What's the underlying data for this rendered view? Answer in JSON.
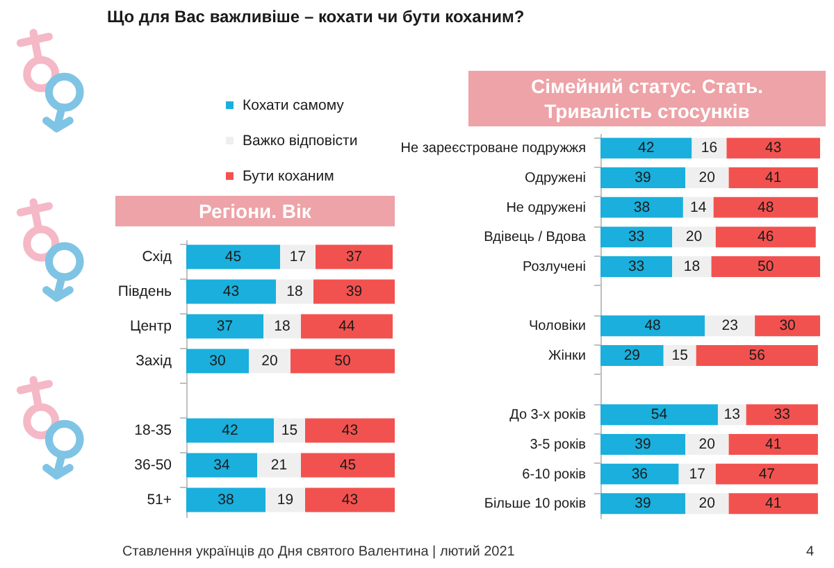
{
  "chart_data": [
    {
      "type": "bar",
      "title": "Що для Вас важливіше – кохати чи бути коханим?",
      "subtitle": "Регіони. Вік",
      "orientation": "horizontal",
      "stacked": true,
      "data_labels": true,
      "tick_labels": "y",
      "legend": "top",
      "categories": [
        "Схід",
        "Південь",
        "Центр",
        "Захід",
        null,
        "18-35",
        "36-50",
        "51+"
      ],
      "series": [
        {
          "name": "Кохати самому",
          "color": "#1aafdc",
          "values": [
            45,
            43,
            37,
            30,
            null,
            42,
            34,
            38
          ]
        },
        {
          "name": "Важко відповісти",
          "color": "#efefef",
          "values": [
            17,
            18,
            18,
            20,
            null,
            15,
            21,
            19
          ]
        },
        {
          "name": "Бути коханим",
          "color": "#f2524f",
          "values": [
            37,
            39,
            44,
            50,
            null,
            43,
            45,
            43
          ]
        }
      ],
      "annotations": [
        "Ставлення українців до Дня святого Валентина | лютий 2021"
      ]
    },
    {
      "type": "bar",
      "title": "Сімейний статус. Стать. Тривалість стосунків",
      "orientation": "horizontal",
      "stacked": true,
      "data_labels": true,
      "tick_labels": "y",
      "categories": [
        "Не зареєстроване подружжя",
        "Одружені",
        "Не одружені",
        "Вдівець / Вдова",
        "Розлучені",
        null,
        "Чоловіки",
        "Жінки",
        null,
        "До 3-х років",
        "3-5 років",
        "6-10 років",
        "Більше 10 років"
      ],
      "series": [
        {
          "color": "#1aafdc",
          "values": [
            42,
            39,
            38,
            33,
            33,
            null,
            48,
            29,
            null,
            54,
            39,
            36,
            39
          ]
        },
        {
          "color": "#efefef",
          "values": [
            16,
            20,
            14,
            20,
            18,
            null,
            23,
            15,
            null,
            13,
            20,
            17,
            20
          ]
        },
        {
          "color": "#f2524f",
          "values": [
            43,
            41,
            48,
            46,
            50,
            null,
            30,
            56,
            null,
            33,
            41,
            47,
            41
          ]
        }
      ],
      "annotations": [
        "4"
      ]
    }
  ]
}
